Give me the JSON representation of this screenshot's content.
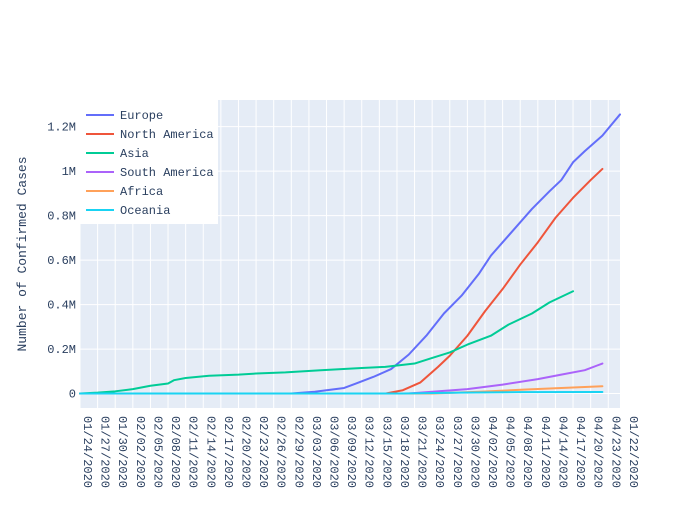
{
  "chart_data": {
    "type": "line",
    "title": "",
    "xlabel": "",
    "ylabel": "Number of Confirmed Cases",
    "grid": true,
    "legend_position": "top-left",
    "ylim": [
      -65000,
      1320000
    ],
    "y_ticks": [
      0,
      200000,
      400000,
      600000,
      800000,
      1000000,
      1200000
    ],
    "y_tick_labels": [
      "0",
      "0.2M",
      "0.4M",
      "0.6M",
      "0.8M",
      "1M",
      "1.2M"
    ],
    "x_ticks": [
      "01/24/2020",
      "01/27/2020",
      "01/30/2020",
      "02/02/2020",
      "02/05/2020",
      "02/08/2020",
      "02/11/2020",
      "02/14/2020",
      "02/17/2020",
      "02/20/2020",
      "02/23/2020",
      "02/26/2020",
      "02/29/2020",
      "03/03/2020",
      "03/06/2020",
      "03/09/2020",
      "03/12/2020",
      "03/15/2020",
      "03/18/2020",
      "03/21/2020",
      "03/24/2020",
      "03/27/2020",
      "03/30/2020",
      "04/02/2020",
      "04/05/2020",
      "04/08/2020",
      "04/11/2020",
      "04/14/2020",
      "04/17/2020",
      "04/20/2020",
      "04/23/2020",
      "01/22/2020"
    ],
    "x_start_date": "01/24/2020",
    "series": [
      {
        "name": "Europe",
        "color": "#636efa",
        "values": [
          [
            0,
            0
          ],
          [
            36,
            0
          ],
          [
            40,
            8000
          ],
          [
            45,
            25000
          ],
          [
            47,
            45000
          ],
          [
            50,
            75000
          ],
          [
            53,
            110000
          ],
          [
            56,
            175000
          ],
          [
            59,
            260000
          ],
          [
            62,
            360000
          ],
          [
            65,
            440000
          ],
          [
            68,
            540000
          ],
          [
            70,
            620000
          ],
          [
            72,
            680000
          ],
          [
            75,
            770000
          ],
          [
            77,
            830000
          ],
          [
            80,
            910000
          ],
          [
            82,
            960000
          ],
          [
            84,
            1040000
          ],
          [
            86,
            1090000
          ],
          [
            89,
            1160000
          ],
          [
            92,
            1255000
          ]
        ]
      },
      {
        "name": "North America",
        "color": "#ef553b",
        "values": [
          [
            0,
            0
          ],
          [
            52,
            0
          ],
          [
            55,
            15000
          ],
          [
            58,
            50000
          ],
          [
            61,
            120000
          ],
          [
            63,
            170000
          ],
          [
            66,
            260000
          ],
          [
            69,
            370000
          ],
          [
            72,
            470000
          ],
          [
            75,
            580000
          ],
          [
            78,
            680000
          ],
          [
            81,
            790000
          ],
          [
            84,
            880000
          ],
          [
            87,
            960000
          ],
          [
            89,
            1010000
          ]
        ]
      },
      {
        "name": "Asia",
        "color": "#00cc96",
        "values": [
          [
            0,
            0
          ],
          [
            3,
            4000
          ],
          [
            6,
            10000
          ],
          [
            9,
            20000
          ],
          [
            12,
            35000
          ],
          [
            15,
            45000
          ],
          [
            16,
            60000
          ],
          [
            18,
            70000
          ],
          [
            22,
            80000
          ],
          [
            27,
            85000
          ],
          [
            30,
            90000
          ],
          [
            35,
            95000
          ],
          [
            41,
            105000
          ],
          [
            48,
            115000
          ],
          [
            52,
            120000
          ],
          [
            57,
            135000
          ],
          [
            60,
            160000
          ],
          [
            63,
            185000
          ],
          [
            66,
            220000
          ],
          [
            70,
            260000
          ],
          [
            73,
            310000
          ],
          [
            77,
            360000
          ],
          [
            80,
            410000
          ],
          [
            84,
            460000
          ]
        ]
      },
      {
        "name": "South America",
        "color": "#ab63fa",
        "values": [
          [
            0,
            0
          ],
          [
            56,
            0
          ],
          [
            60,
            8000
          ],
          [
            66,
            20000
          ],
          [
            72,
            40000
          ],
          [
            78,
            65000
          ],
          [
            82,
            85000
          ],
          [
            86,
            105000
          ],
          [
            88,
            125000
          ],
          [
            89,
            135000
          ]
        ]
      },
      {
        "name": "Africa",
        "color": "#ffa15a",
        "values": [
          [
            0,
            0
          ],
          [
            60,
            0
          ],
          [
            68,
            8000
          ],
          [
            76,
            18000
          ],
          [
            84,
            27000
          ],
          [
            89,
            33000
          ]
        ]
      },
      {
        "name": "Oceania",
        "color": "#19d3f3",
        "values": [
          [
            0,
            0
          ],
          [
            55,
            0
          ],
          [
            65,
            4000
          ],
          [
            75,
            6500
          ],
          [
            89,
            7000
          ]
        ]
      }
    ]
  }
}
